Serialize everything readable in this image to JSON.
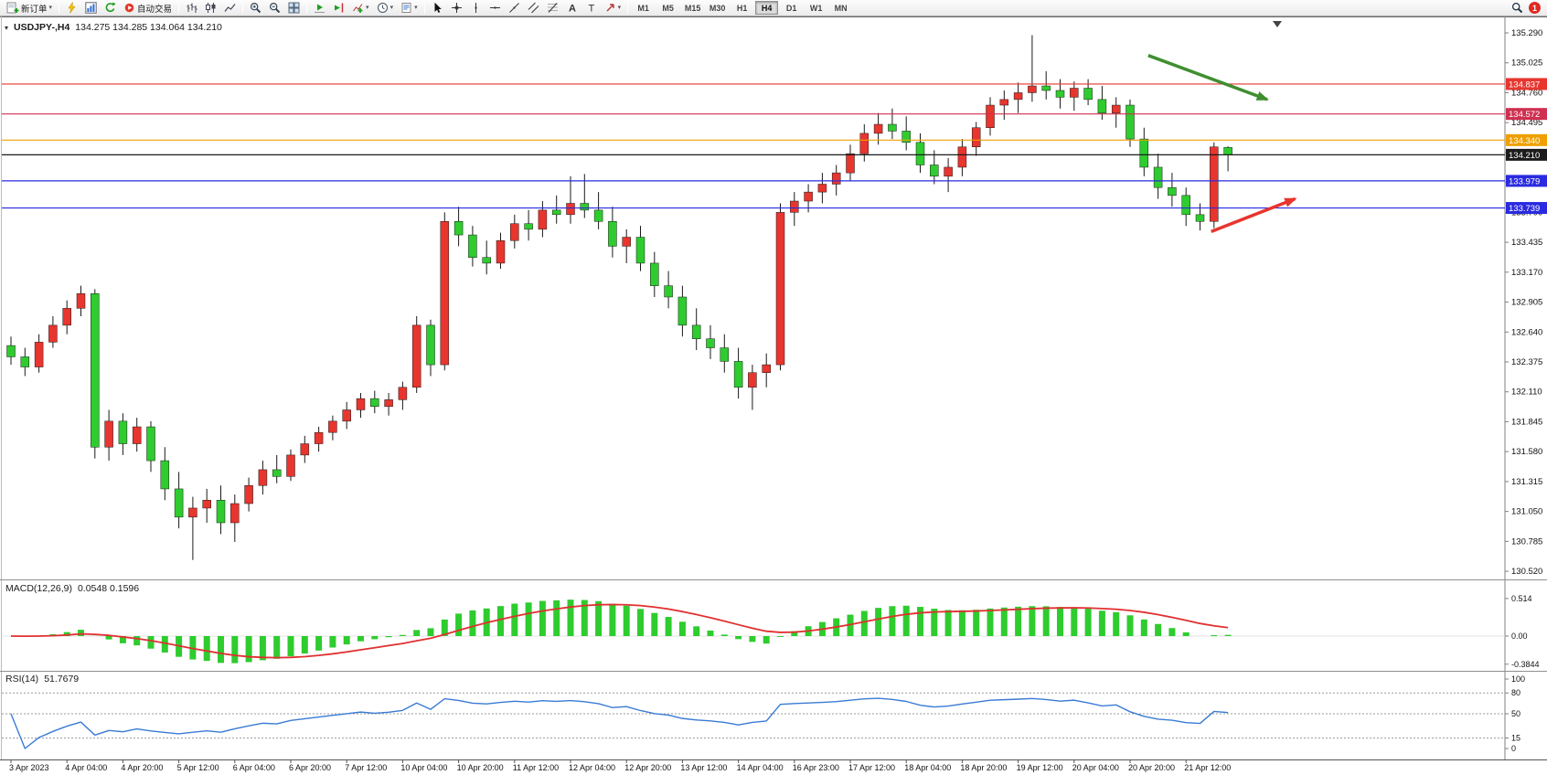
{
  "icons": {
    "caret_down": "▾",
    "collapse": "▾"
  },
  "toolbar": {
    "new_order_label": "新订单",
    "autotrading_label": "自动交易",
    "timeframes": [
      "M1",
      "M5",
      "M15",
      "M30",
      "H1",
      "H4",
      "D1",
      "W1",
      "MN"
    ],
    "active_timeframe": "H4",
    "notification_count": "1"
  },
  "chart": {
    "symbol_period": "USDJPY-,H4",
    "ohlc_text": "134.275 134.285 134.064 134.210",
    "up_color": "#e8352e",
    "down_color": "#2ecc2e",
    "price_axis_labels": [
      "135.290",
      "135.025",
      "134.760",
      "134.495",
      "134.230",
      "133.965",
      "133.700",
      "133.435",
      "133.170",
      "132.905",
      "132.640",
      "132.375",
      "132.110",
      "131.845",
      "131.580",
      "131.315",
      "131.050",
      "130.785",
      "130.520"
    ],
    "hlines": [
      {
        "label": "134.837",
        "price": 134.837,
        "color": "#e8352e"
      },
      {
        "label": "134.572",
        "price": 134.572,
        "color": "#cf3050"
      },
      {
        "label": "134.340",
        "price": 134.34,
        "color": "#efa000"
      },
      {
        "label": "134.210",
        "price": 134.21,
        "color": "#1c1c1c"
      },
      {
        "label": "133.979",
        "price": 133.979,
        "color": "#2a2ae0"
      },
      {
        "label": "133.739",
        "price": 133.739,
        "color": "#2a2ae0"
      }
    ],
    "arrows": [
      {
        "name": "bearish-arrow",
        "color": "#3f8f2f",
        "b1": 81.3,
        "p1": 135.09,
        "b2": 89.8,
        "p2": 134.7
      },
      {
        "name": "bullish-arrow",
        "color": "#e8352e",
        "b1": 85.8,
        "p1": 133.53,
        "b2": 91.8,
        "p2": 133.82
      }
    ]
  },
  "chart_data": {
    "type": "candlestick",
    "symbol": "USDJPY",
    "timeframe": "H4",
    "title": "USDJPY-,H4",
    "ohlc_current": {
      "open": 134.275,
      "high": 134.285,
      "low": 134.064,
      "close": 134.21
    },
    "price_range_visible": [
      130.46,
      135.4
    ],
    "label_every_n_bars": 4,
    "time_labels": [
      "3 Apr 2023",
      "4 Apr 04:00",
      "4 Apr 20:00",
      "5 Apr 12:00",
      "6 Apr 04:00",
      "6 Apr 20:00",
      "7 Apr 12:00",
      "10 Apr 04:00",
      "10 Apr 20:00",
      "11 Apr 12:00",
      "12 Apr 04:00",
      "12 Apr 20:00",
      "13 Apr 12:00",
      "14 Apr 04:00",
      "16 Apr 23:00",
      "17 Apr 12:00",
      "18 Apr 04:00",
      "18 Apr 20:00",
      "19 Apr 12:00",
      "20 Apr 04:00",
      "20 Apr 20:00",
      "21 Apr 12:00"
    ],
    "candles": [
      [
        132.52,
        132.6,
        132.35,
        132.42
      ],
      [
        132.42,
        132.5,
        132.25,
        132.33
      ],
      [
        132.33,
        132.62,
        132.28,
        132.55
      ],
      [
        132.55,
        132.78,
        132.5,
        132.7
      ],
      [
        132.7,
        132.92,
        132.62,
        132.85
      ],
      [
        132.85,
        133.05,
        132.78,
        132.98
      ],
      [
        132.98,
        133.02,
        131.52,
        131.62
      ],
      [
        131.62,
        131.95,
        131.5,
        131.85
      ],
      [
        131.85,
        131.92,
        131.55,
        131.65
      ],
      [
        131.65,
        131.88,
        131.58,
        131.8
      ],
      [
        131.8,
        131.85,
        131.4,
        131.5
      ],
      [
        131.5,
        131.62,
        131.15,
        131.25
      ],
      [
        131.25,
        131.4,
        130.9,
        131.0
      ],
      [
        131.0,
        131.18,
        130.62,
        131.08
      ],
      [
        131.08,
        131.25,
        130.95,
        131.15
      ],
      [
        131.15,
        131.28,
        130.85,
        130.95
      ],
      [
        130.95,
        131.2,
        130.78,
        131.12
      ],
      [
        131.12,
        131.35,
        131.05,
        131.28
      ],
      [
        131.28,
        131.5,
        131.2,
        131.42
      ],
      [
        131.42,
        131.55,
        131.3,
        131.36
      ],
      [
        131.36,
        131.6,
        131.32,
        131.55
      ],
      [
        131.55,
        131.72,
        131.48,
        131.65
      ],
      [
        131.65,
        131.8,
        131.58,
        131.75
      ],
      [
        131.75,
        131.9,
        131.68,
        131.85
      ],
      [
        131.85,
        132.02,
        131.78,
        131.95
      ],
      [
        131.95,
        132.1,
        131.88,
        132.05
      ],
      [
        132.05,
        132.12,
        131.92,
        131.98
      ],
      [
        131.98,
        132.1,
        131.9,
        132.04
      ],
      [
        132.04,
        132.2,
        131.95,
        132.15
      ],
      [
        132.15,
        132.78,
        132.1,
        132.7
      ],
      [
        132.7,
        132.75,
        132.25,
        132.35
      ],
      [
        132.35,
        133.7,
        132.3,
        133.62
      ],
      [
        133.62,
        133.75,
        133.4,
        133.5
      ],
      [
        133.5,
        133.58,
        133.22,
        133.3
      ],
      [
        133.3,
        133.45,
        133.15,
        133.25
      ],
      [
        133.25,
        133.52,
        133.2,
        133.45
      ],
      [
        133.45,
        133.68,
        133.38,
        133.6
      ],
      [
        133.6,
        133.72,
        133.45,
        133.55
      ],
      [
        133.55,
        133.8,
        133.48,
        133.72
      ],
      [
        133.72,
        133.85,
        133.6,
        133.68
      ],
      [
        133.68,
        134.02,
        133.6,
        133.78
      ],
      [
        133.78,
        134.04,
        133.65,
        133.72
      ],
      [
        133.72,
        133.88,
        133.55,
        133.62
      ],
      [
        133.62,
        133.75,
        133.3,
        133.4
      ],
      [
        133.4,
        133.55,
        133.25,
        133.48
      ],
      [
        133.48,
        133.58,
        133.18,
        133.25
      ],
      [
        133.25,
        133.35,
        132.95,
        133.05
      ],
      [
        133.05,
        133.18,
        132.85,
        132.95
      ],
      [
        132.95,
        133.05,
        132.6,
        132.7
      ],
      [
        132.7,
        132.85,
        132.48,
        132.58
      ],
      [
        132.58,
        132.7,
        132.4,
        132.5
      ],
      [
        132.5,
        132.62,
        132.28,
        132.38
      ],
      [
        132.38,
        132.5,
        132.05,
        132.15
      ],
      [
        132.15,
        132.35,
        131.95,
        132.28
      ],
      [
        132.28,
        132.45,
        132.15,
        132.35
      ],
      [
        132.35,
        133.78,
        132.3,
        133.7
      ],
      [
        133.7,
        133.88,
        133.58,
        133.8
      ],
      [
        133.8,
        133.95,
        133.7,
        133.88
      ],
      [
        133.88,
        134.05,
        133.78,
        133.95
      ],
      [
        133.95,
        134.12,
        133.85,
        134.05
      ],
      [
        134.05,
        134.3,
        133.98,
        134.22
      ],
      [
        134.22,
        134.48,
        134.15,
        134.4
      ],
      [
        134.4,
        134.58,
        134.3,
        134.48
      ],
      [
        134.48,
        134.62,
        134.35,
        134.42
      ],
      [
        134.42,
        134.55,
        134.25,
        134.32
      ],
      [
        134.32,
        134.4,
        134.05,
        134.12
      ],
      [
        134.12,
        134.25,
        133.95,
        134.02
      ],
      [
        134.02,
        134.18,
        133.88,
        134.1
      ],
      [
        134.1,
        134.35,
        134.02,
        134.28
      ],
      [
        134.28,
        134.5,
        134.2,
        134.45
      ],
      [
        134.45,
        134.72,
        134.38,
        134.65
      ],
      [
        134.65,
        134.78,
        134.52,
        134.7
      ],
      [
        134.7,
        134.85,
        134.58,
        134.76
      ],
      [
        134.76,
        135.27,
        134.68,
        134.82
      ],
      [
        134.82,
        134.95,
        134.7,
        134.78
      ],
      [
        134.78,
        134.88,
        134.62,
        134.72
      ],
      [
        134.72,
        134.86,
        134.6,
        134.8
      ],
      [
        134.8,
        134.88,
        134.65,
        134.7
      ],
      [
        134.7,
        134.82,
        134.52,
        134.58
      ],
      [
        134.58,
        134.72,
        134.45,
        134.65
      ],
      [
        134.65,
        134.7,
        134.28,
        134.35
      ],
      [
        134.35,
        134.45,
        134.02,
        134.1
      ],
      [
        134.1,
        134.22,
        133.82,
        133.92
      ],
      [
        133.92,
        134.05,
        133.75,
        133.85
      ],
      [
        133.85,
        133.92,
        133.58,
        133.68
      ],
      [
        133.68,
        133.78,
        133.54,
        133.62
      ],
      [
        133.62,
        134.32,
        133.56,
        134.28
      ],
      [
        134.275,
        134.285,
        134.064,
        134.21
      ]
    ]
  },
  "macd": {
    "params_text": "MACD(12,26,9)",
    "values_text": "0.0548 0.1596",
    "fast": 12,
    "slow": 26,
    "signal": 9,
    "axis_labels": [
      "0.514",
      "0.00",
      "-0.3844"
    ],
    "histogram_color": "#2ecc2e",
    "signal_color": "#e03030"
  },
  "rsi": {
    "params_text": "RSI(14)",
    "value_text": "51.7679",
    "period": 14,
    "levels": [
      80,
      50,
      15
    ],
    "axis_labels": [
      "100",
      "80",
      "50",
      "15",
      "0"
    ],
    "line_color": "#3a7bd5"
  }
}
